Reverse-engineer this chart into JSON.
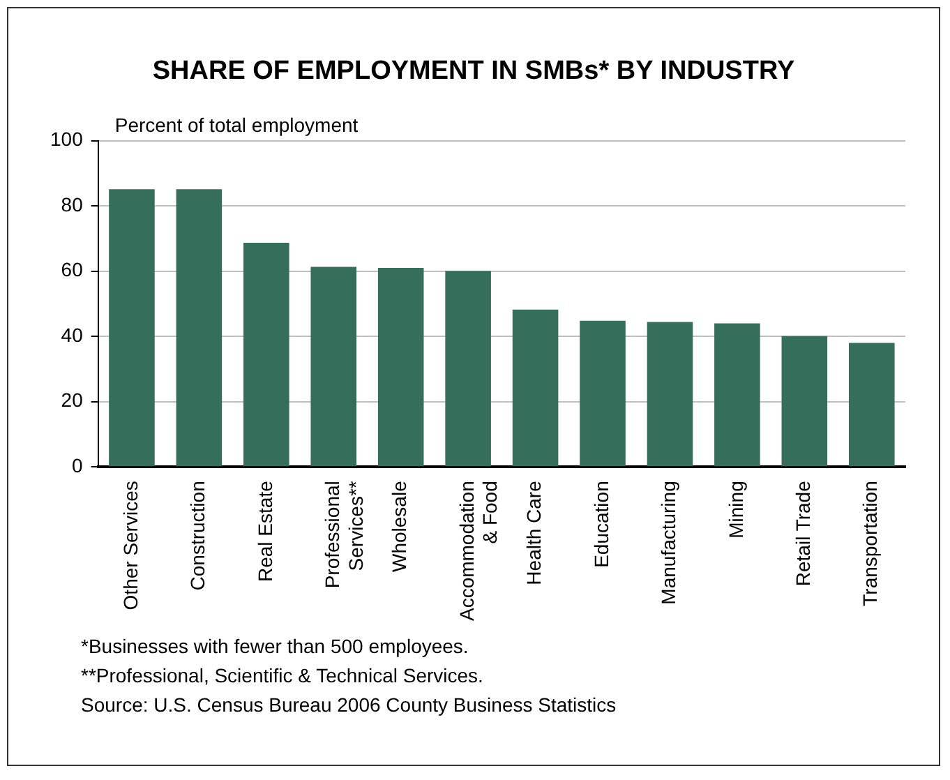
{
  "chart_data": {
    "type": "bar",
    "title": "SHARE OF EMPLOYMENT IN SMBs* BY INDUSTRY",
    "ylabel": "Percent of total employment",
    "categories": [
      "Other Services",
      "Construction",
      "Real Estate",
      "Professional Services**",
      "Wholesale",
      "Accommodation & Food",
      "Health Care",
      "Education",
      "Manufacturing",
      "Mining",
      "Retail Trade",
      "Transportation"
    ],
    "values": [
      85.1,
      85.1,
      68.7,
      61.3,
      61,
      60.1,
      48.2,
      44.8,
      44.4,
      44,
      40.1,
      38
    ],
    "color": "#356f5b",
    "ylim": [
      0,
      100
    ],
    "yticks": [
      0,
      20,
      40,
      60,
      80,
      100
    ],
    "grid": "y",
    "annotations": [
      "*Businesses with fewer than 500 employees.",
      "**Professional, Scientific & Technical Services.",
      "Source: U.S. Census Bureau 2006 County Business Statistics"
    ]
  }
}
